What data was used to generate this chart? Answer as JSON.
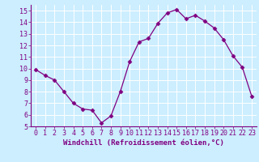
{
  "x": [
    0,
    1,
    2,
    3,
    4,
    5,
    6,
    7,
    8,
    9,
    10,
    11,
    12,
    13,
    14,
    15,
    16,
    17,
    18,
    19,
    20,
    21,
    22,
    23
  ],
  "y": [
    9.9,
    9.4,
    9.0,
    8.0,
    7.0,
    6.5,
    6.4,
    5.3,
    5.9,
    8.0,
    10.6,
    12.3,
    12.6,
    13.9,
    14.8,
    15.1,
    14.3,
    14.6,
    14.1,
    13.5,
    12.5,
    11.1,
    10.1,
    7.6
  ],
  "line_color": "#800080",
  "marker": "D",
  "marker_size": 2.5,
  "bg_color": "#cceeff",
  "grid_color": "#ffffff",
  "xlabel": "Windchill (Refroidissement éolien,°C)",
  "ylim": [
    5,
    15.5
  ],
  "xlim": [
    -0.5,
    23.5
  ],
  "yticks": [
    5,
    6,
    7,
    8,
    9,
    10,
    11,
    12,
    13,
    14,
    15
  ],
  "xticks": [
    0,
    1,
    2,
    3,
    4,
    5,
    6,
    7,
    8,
    9,
    10,
    11,
    12,
    13,
    14,
    15,
    16,
    17,
    18,
    19,
    20,
    21,
    22,
    23
  ],
  "tick_color": "#800080",
  "label_fontsize": 6.5,
  "tick_fontsize": 6.0
}
